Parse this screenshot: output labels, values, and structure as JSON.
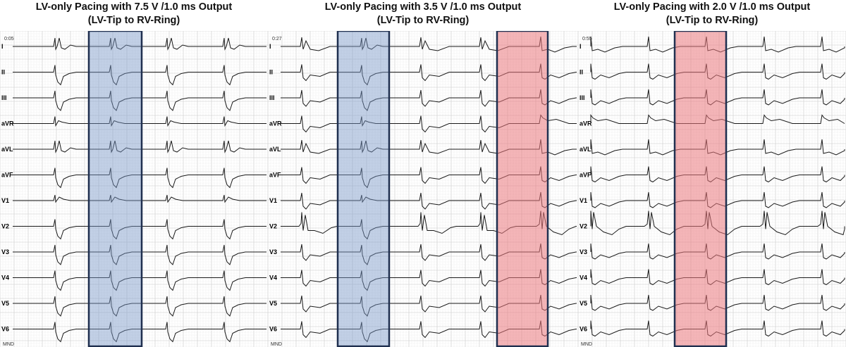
{
  "panels": [
    {
      "title_line1": "LV-only Pacing with 7.5 V /1.0 ms Output",
      "title_line2": "(LV-Tip to RV-Ring)",
      "time_marker": "0:05",
      "morphology": "lv",
      "highlights": [
        {
          "color": "blue"
        }
      ]
    },
    {
      "title_line1": "LV-only Pacing with 3.5 V /1.0 ms Output",
      "title_line2": "(LV-Tip to RV-Ring)",
      "time_marker": "0:27",
      "morphology": "mixed",
      "highlights": [
        {
          "color": "blue"
        },
        {
          "color": "red"
        }
      ]
    },
    {
      "title_line1": "LV-only Pacing with 2.0 V /1.0 ms Output",
      "title_line2": "(LV-Tip to RV-Ring)",
      "time_marker": "0:55",
      "morphology": "loss",
      "highlights": [
        {
          "color": "red"
        }
      ]
    }
  ],
  "leads": [
    "I",
    "II",
    "III",
    "aVR",
    "aVL",
    "aVF",
    "V1",
    "V2",
    "V3",
    "V4",
    "V5",
    "V6"
  ],
  "footer_text": "MND",
  "colors": {
    "grid_minor": "#e4e4e4",
    "grid_major": "#c8c8c8",
    "trace": "#1a1a1a",
    "highlight_blue_fill": "rgba(120,150,200,0.45)",
    "highlight_red_fill": "rgba(235,120,125,0.55)",
    "highlight_border": "#1f2f4f"
  }
}
